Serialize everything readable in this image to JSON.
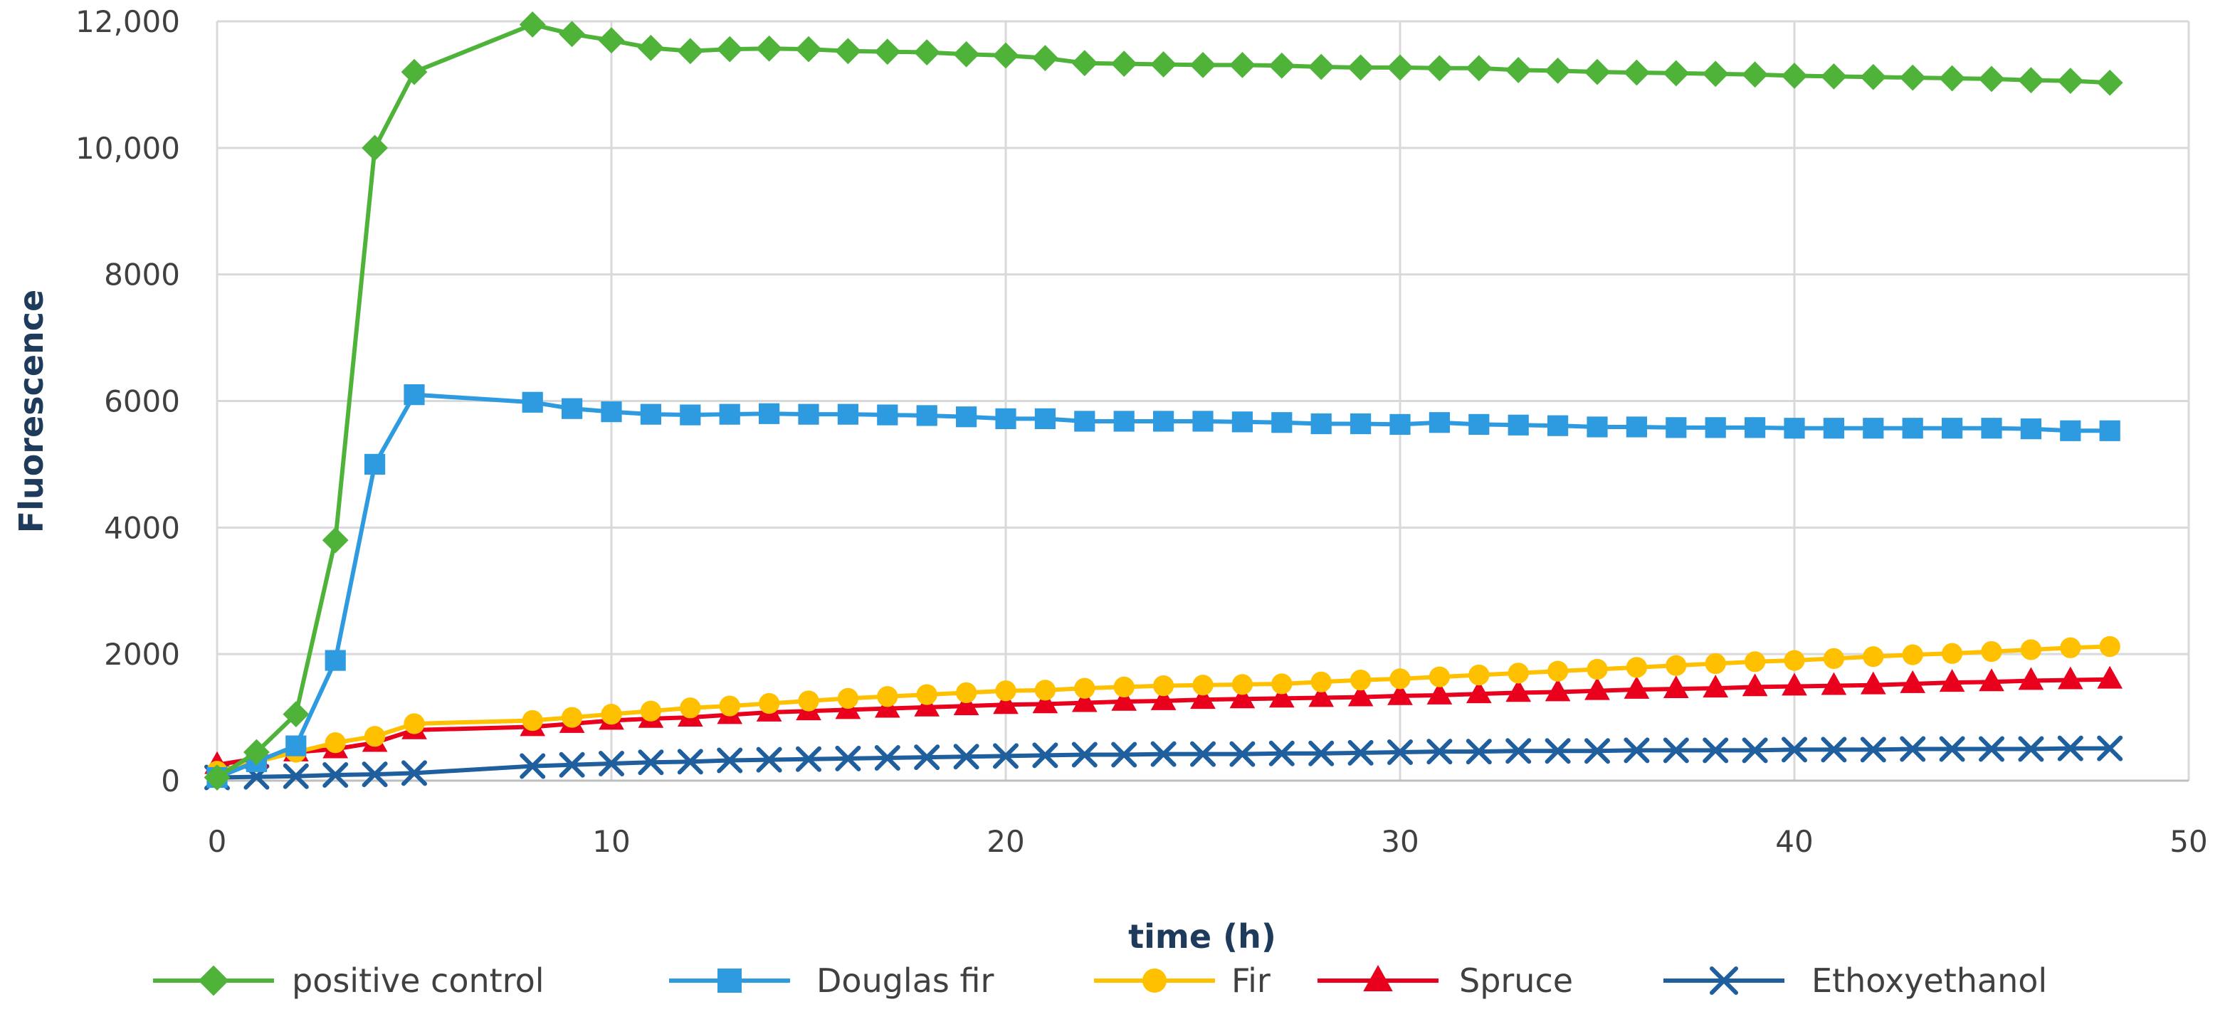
{
  "chart_data": {
    "type": "line",
    "title": "",
    "xlabel": "time (h)",
    "ylabel": "Fluorescence",
    "xlim": [
      0,
      50
    ],
    "ylim": [
      0,
      12000
    ],
    "x_ticks": [
      0,
      10,
      20,
      30,
      40,
      50
    ],
    "x_tick_labels": [
      "0",
      "10",
      "20",
      "30",
      "40",
      "50"
    ],
    "y_ticks": [
      0,
      2000,
      4000,
      6000,
      8000,
      10000,
      12000
    ],
    "y_tick_labels": [
      "0",
      "2000",
      "4000",
      "6000",
      "8000",
      "10,000",
      "12,000"
    ],
    "grid": true,
    "legend_position": "bottom",
    "series": [
      {
        "name": "positive control",
        "color": "#4fb33a",
        "marker": "diamond",
        "x": [
          0,
          1,
          2,
          3,
          4,
          5,
          8,
          9,
          10,
          11,
          12,
          13,
          14,
          15,
          16,
          17,
          18,
          19,
          20,
          21,
          22,
          23,
          24,
          25,
          26,
          27,
          28,
          29,
          30,
          31,
          32,
          33,
          34,
          35,
          36,
          37,
          38,
          39,
          40,
          41,
          42,
          43,
          44,
          45,
          46,
          47,
          48
        ],
        "values": [
          50,
          450,
          1050,
          3800,
          10000,
          11200,
          11950,
          11800,
          11700,
          11580,
          11530,
          11560,
          11570,
          11560,
          11530,
          11520,
          11510,
          11480,
          11460,
          11420,
          11340,
          11330,
          11320,
          11310,
          11310,
          11300,
          11280,
          11270,
          11270,
          11260,
          11260,
          11230,
          11220,
          11200,
          11190,
          11180,
          11170,
          11160,
          11140,
          11130,
          11120,
          11110,
          11100,
          11090,
          11070,
          11060,
          11030
        ]
      },
      {
        "name": "Douglas fir",
        "color": "#2e9be0",
        "marker": "square",
        "x": [
          0,
          1,
          2,
          3,
          4,
          5,
          8,
          9,
          10,
          11,
          12,
          13,
          14,
          15,
          16,
          17,
          18,
          19,
          20,
          21,
          22,
          23,
          24,
          25,
          26,
          27,
          28,
          29,
          30,
          31,
          32,
          33,
          34,
          35,
          36,
          37,
          38,
          39,
          40,
          41,
          42,
          43,
          44,
          45,
          46,
          47,
          48
        ],
        "values": [
          50,
          300,
          550,
          1900,
          5000,
          6100,
          5980,
          5880,
          5830,
          5790,
          5780,
          5790,
          5800,
          5790,
          5790,
          5780,
          5770,
          5750,
          5720,
          5720,
          5680,
          5680,
          5680,
          5680,
          5670,
          5660,
          5640,
          5640,
          5630,
          5660,
          5630,
          5620,
          5610,
          5590,
          5590,
          5580,
          5580,
          5580,
          5570,
          5570,
          5570,
          5570,
          5570,
          5570,
          5560,
          5530,
          5530
        ]
      },
      {
        "name": "Fir",
        "color": "#ffc000",
        "marker": "circle",
        "x": [
          0,
          1,
          2,
          3,
          4,
          5,
          8,
          9,
          10,
          11,
          12,
          13,
          14,
          15,
          16,
          17,
          18,
          19,
          20,
          21,
          22,
          23,
          24,
          25,
          26,
          27,
          28,
          29,
          30,
          31,
          32,
          33,
          34,
          35,
          36,
          37,
          38,
          39,
          40,
          41,
          42,
          43,
          44,
          45,
          46,
          47,
          48
        ],
        "values": [
          150,
          300,
          450,
          600,
          700,
          900,
          950,
          1000,
          1050,
          1100,
          1150,
          1180,
          1220,
          1260,
          1300,
          1330,
          1360,
          1390,
          1420,
          1430,
          1460,
          1480,
          1500,
          1510,
          1520,
          1530,
          1560,
          1590,
          1610,
          1640,
          1670,
          1700,
          1730,
          1760,
          1790,
          1820,
          1850,
          1880,
          1900,
          1930,
          1960,
          1990,
          2010,
          2040,
          2070,
          2100,
          2120
        ]
      },
      {
        "name": "Spruce",
        "color": "#e8001c",
        "marker": "triangle",
        "x": [
          0,
          1,
          2,
          3,
          4,
          5,
          8,
          9,
          10,
          11,
          12,
          13,
          14,
          15,
          16,
          17,
          18,
          19,
          20,
          21,
          22,
          23,
          24,
          25,
          26,
          27,
          28,
          29,
          30,
          31,
          32,
          33,
          34,
          35,
          36,
          37,
          38,
          39,
          40,
          41,
          42,
          43,
          44,
          45,
          46,
          47,
          48
        ],
        "values": [
          250,
          350,
          450,
          500,
          600,
          800,
          850,
          900,
          950,
          980,
          1000,
          1040,
          1080,
          1100,
          1120,
          1140,
          1160,
          1180,
          1200,
          1210,
          1230,
          1250,
          1260,
          1280,
          1290,
          1300,
          1310,
          1320,
          1340,
          1350,
          1370,
          1390,
          1400,
          1420,
          1440,
          1450,
          1460,
          1480,
          1490,
          1500,
          1510,
          1530,
          1550,
          1560,
          1580,
          1590,
          1600
        ]
      },
      {
        "name": "Ethoxyethanol",
        "color": "#1f5f9e",
        "marker": "x",
        "x": [
          0,
          1,
          2,
          3,
          4,
          5,
          8,
          9,
          10,
          11,
          12,
          13,
          14,
          15,
          16,
          17,
          18,
          19,
          20,
          21,
          22,
          23,
          24,
          25,
          26,
          27,
          28,
          29,
          30,
          31,
          32,
          33,
          34,
          35,
          36,
          37,
          38,
          39,
          40,
          41,
          42,
          43,
          44,
          45,
          46,
          47,
          48
        ],
        "values": [
          50,
          60,
          70,
          90,
          100,
          120,
          230,
          250,
          270,
          290,
          300,
          320,
          330,
          340,
          350,
          360,
          370,
          380,
          390,
          400,
          410,
          410,
          420,
          420,
          420,
          430,
          430,
          440,
          450,
          460,
          460,
          470,
          470,
          470,
          480,
          480,
          480,
          480,
          490,
          490,
          490,
          500,
          500,
          500,
          500,
          510,
          510
        ]
      }
    ]
  }
}
